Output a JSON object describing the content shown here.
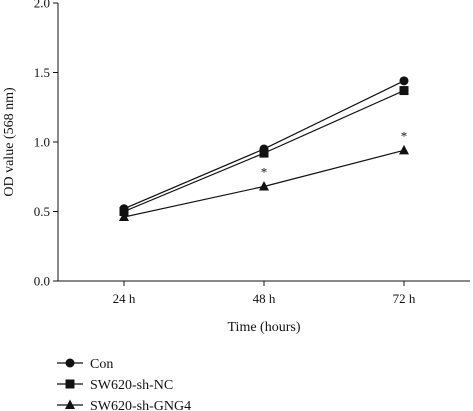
{
  "chart_data": {
    "type": "line",
    "xlabel": "Time (hours)",
    "ylabel": "OD value (568 nm)",
    "categories": [
      "24 h",
      "48 h",
      "72 h"
    ],
    "ylim": [
      0,
      2.0
    ],
    "yticks": [
      0.0,
      0.5,
      1.0,
      1.5,
      2.0
    ],
    "ytick_labels": [
      "0.0",
      "0.5",
      "1.0",
      "1.5",
      "2.0"
    ],
    "grid": false,
    "legend_position": "bottom-left",
    "series": [
      {
        "name": "Con",
        "marker": "circle",
        "values": [
          0.52,
          0.95,
          1.44
        ]
      },
      {
        "name": "SW620-sh-NC",
        "marker": "square",
        "values": [
          0.5,
          0.92,
          1.37
        ]
      },
      {
        "name": "SW620-sh-GNG4",
        "marker": "triangle",
        "values": [
          0.46,
          0.68,
          0.94
        ]
      }
    ],
    "annotations": [
      {
        "text": "*",
        "category": "48 h",
        "series": "SW620-sh-GNG4"
      },
      {
        "text": "*",
        "category": "72 h",
        "series": "SW620-sh-GNG4"
      }
    ]
  },
  "colors": {
    "line": "#111111",
    "background": "#ffffff"
  }
}
